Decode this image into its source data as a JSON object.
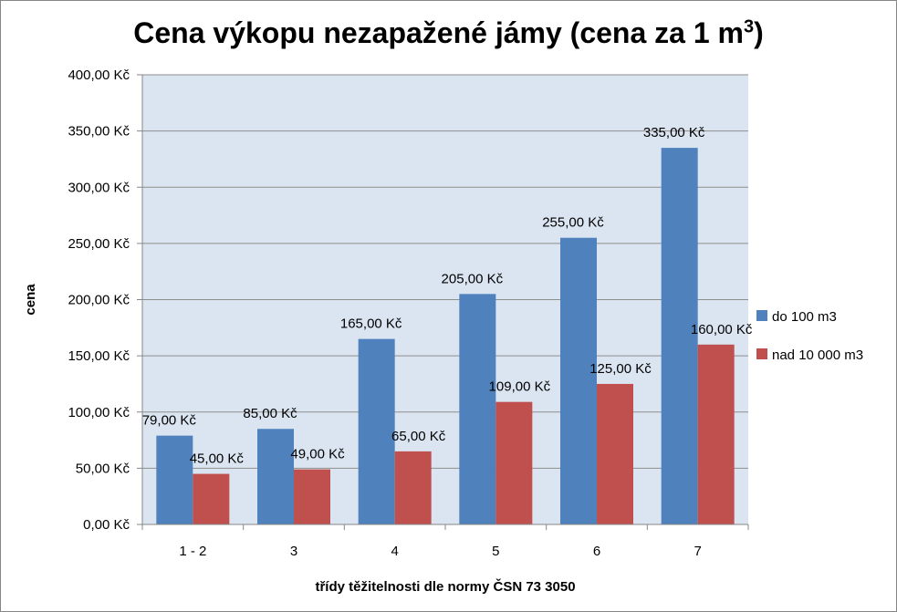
{
  "chart_data": {
    "type": "bar",
    "title": "Cena výkopu nezapažené jámy (cena za 1 m",
    "title_sup": "3",
    "title_end": ")",
    "xlabel": "třídy těžitelnosti dle normy ČSN 73 3050",
    "ylabel": "cena",
    "categories": [
      "1 - 2",
      "3",
      "4",
      "5",
      "6",
      "7"
    ],
    "ylim": [
      0,
      400
    ],
    "ytick_step": 50,
    "ytick_labels": [
      "0,00 Kč",
      "50,00 Kč",
      "100,00 Kč",
      "150,00 Kč",
      "200,00 Kč",
      "250,00 Kč",
      "300,00 Kč",
      "350,00 Kč",
      "400,00 Kč"
    ],
    "grid": true,
    "legend_position": "right",
    "series": [
      {
        "name": "do 100 m3",
        "color": "#4f81bd",
        "values": [
          79,
          85,
          165,
          205,
          255,
          335
        ],
        "labels": [
          "79,00 Kč",
          "85,00 Kč",
          "165,00 Kč",
          "205,00 Kč",
          "255,00 Kč",
          "335,00 Kč"
        ]
      },
      {
        "name": "nad 10 000 m3",
        "color": "#c0504d",
        "values": [
          45,
          49,
          65,
          109,
          125,
          160
        ],
        "labels": [
          "45,00 Kč",
          "49,00 Kč",
          "65,00 Kč",
          "109,00 Kč",
          "125,00 Kč",
          "160,00 Kč"
        ]
      }
    ]
  }
}
